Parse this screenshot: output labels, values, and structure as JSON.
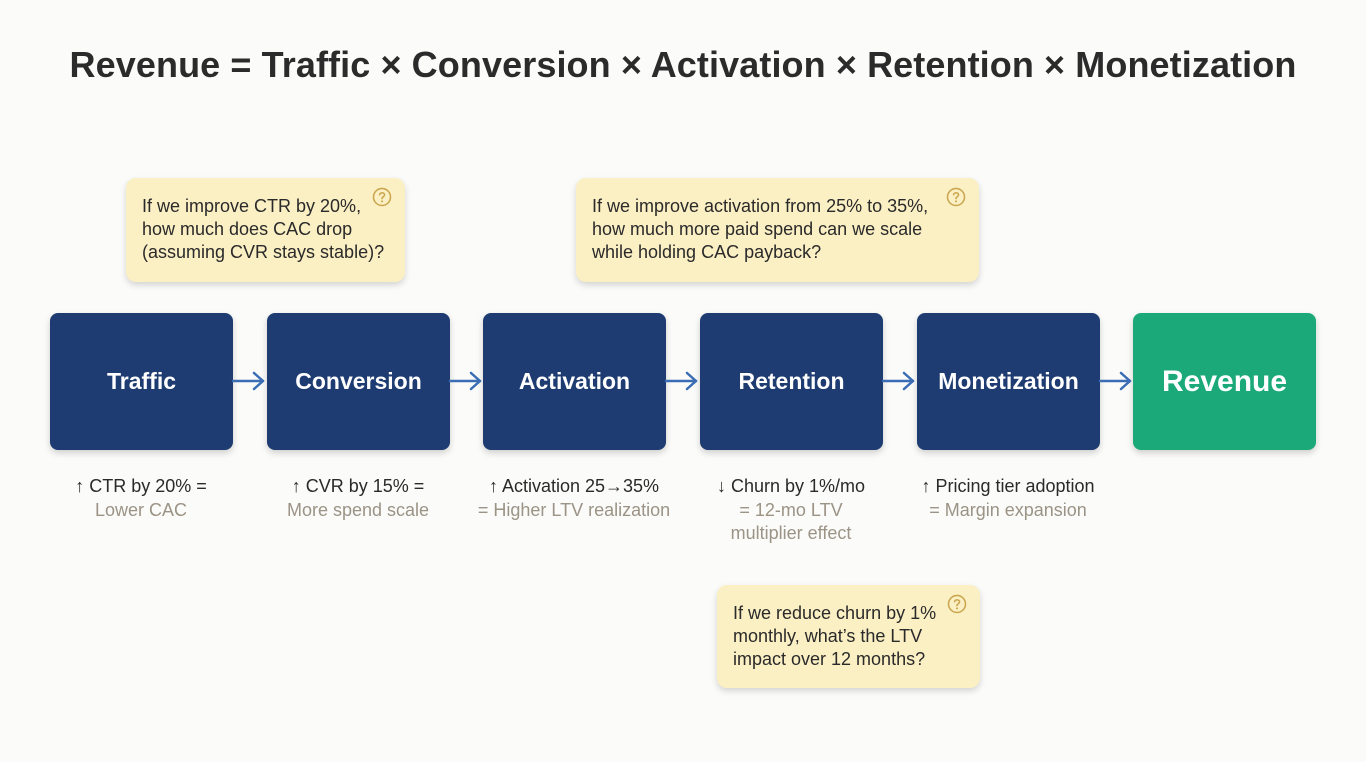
{
  "title": "Revenue = Traffic × Conversion × Activation × Retention × Monetization",
  "colors": {
    "stage_box": "#1e3c72",
    "revenue_box": "#1ca97a",
    "arrow": "#3a6db4",
    "note_bg": "#fbefc4",
    "help_icon": "#c9a44a",
    "secondary_text": "#9b9385"
  },
  "stages": [
    {
      "label": "Traffic"
    },
    {
      "label": "Conversion"
    },
    {
      "label": "Activation"
    },
    {
      "label": "Retention"
    },
    {
      "label": "Monetization"
    },
    {
      "label": "Revenue"
    }
  ],
  "metrics": [
    {
      "line1": "↑ CTR by 20% =",
      "line2": "Lower CAC"
    },
    {
      "line1": "↑ CVR by 15% =",
      "line2": "More spend scale"
    },
    {
      "line1": "↑ Activation 25→35%",
      "line2": "= Higher LTV realization"
    },
    {
      "line1": "↓ Churn by 1%/mo",
      "line2": "= 12-mo LTV",
      "line3": "multiplier effect"
    },
    {
      "line1": "↑ Pricing tier adoption",
      "line2": "= Margin expansion"
    }
  ],
  "notes": [
    {
      "icon": "question-circle-icon",
      "lines": [
        "If we improve CTR by 20%,",
        "how much does CAC drop",
        "(assuming CVR stays stable)?"
      ]
    },
    {
      "icon": "question-circle-icon",
      "lines": [
        "If we improve activation from 25% to 35%,",
        "how much more paid spend can we scale",
        "while holding CAC payback?"
      ]
    },
    {
      "icon": "question-circle-icon",
      "lines": [
        "If we reduce churn by 1%",
        "monthly, what’s the LTV",
        "impact over 12 months?"
      ]
    }
  ]
}
